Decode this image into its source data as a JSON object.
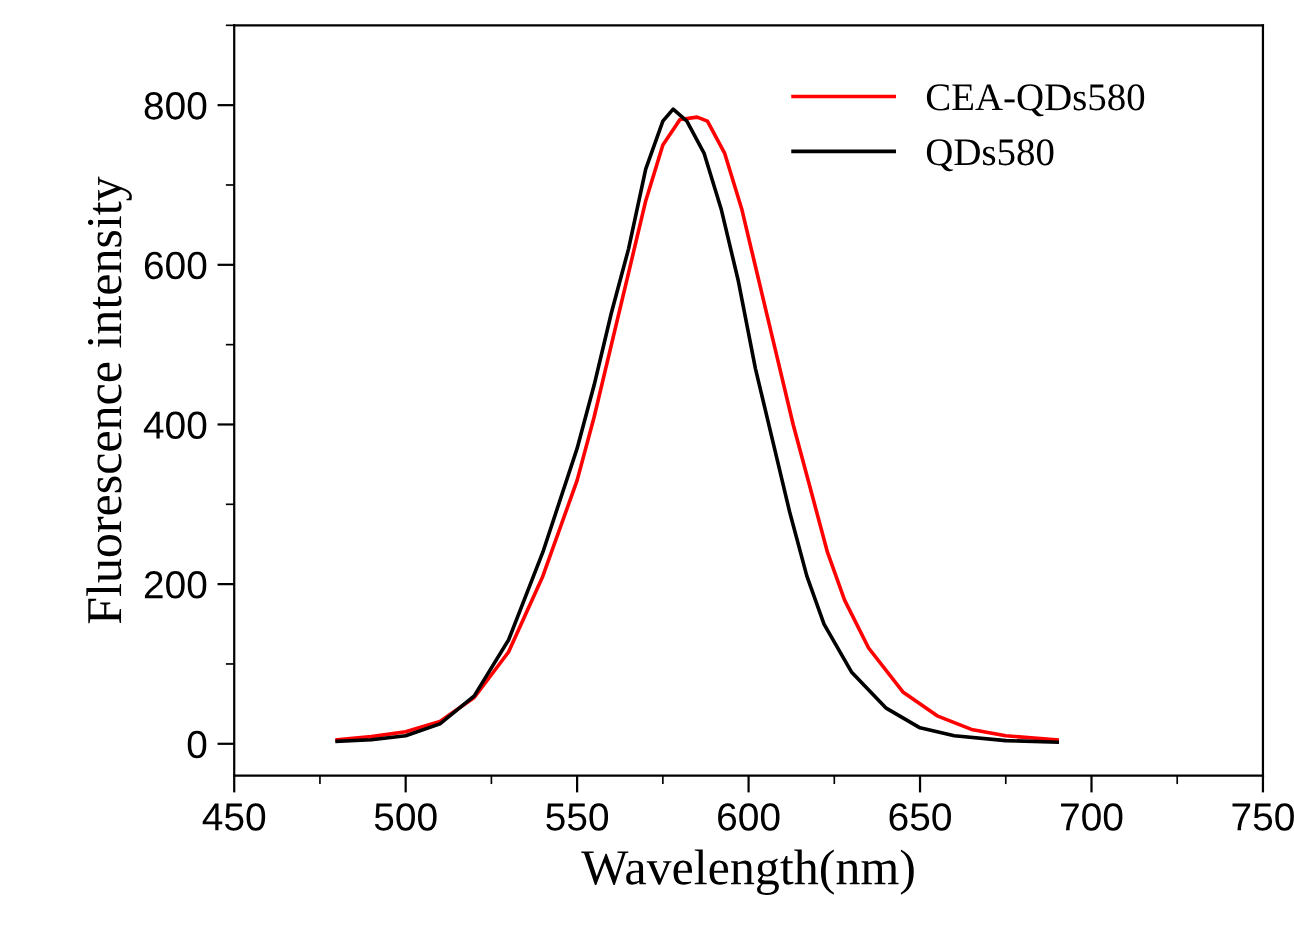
{
  "chart_data": {
    "type": "line",
    "xlabel": "Wavelength(nm)",
    "ylabel": "Fluorescence intensity",
    "xlim": [
      450,
      750
    ],
    "ylim": [
      -40,
      900
    ],
    "xticks": [
      450,
      500,
      550,
      600,
      650,
      700,
      750
    ],
    "yticks": [
      0,
      200,
      400,
      600,
      800
    ],
    "grid": false,
    "legend": "top right",
    "marker": "none",
    "line_style": "solid",
    "series": [
      {
        "name": "CEA-QDs580",
        "color": "#ff0000",
        "x": [
          480,
          490,
          500,
          510,
          520,
          530,
          540,
          550,
          555,
          560,
          565,
          570,
          575,
          580,
          585,
          588,
          593,
          598,
          603,
          608,
          613,
          618,
          623,
          628,
          635,
          645,
          655,
          665,
          675,
          690
        ],
        "values": [
          5,
          9,
          15,
          28,
          58,
          115,
          210,
          330,
          410,
          500,
          590,
          680,
          750,
          782,
          785,
          780,
          740,
          670,
          580,
          490,
          400,
          320,
          240,
          180,
          120,
          65,
          35,
          18,
          10,
          5
        ]
      },
      {
        "name": "QDs580",
        "color": "#000000",
        "x": [
          480,
          490,
          500,
          510,
          520,
          530,
          540,
          550,
          555,
          560,
          565,
          570,
          575,
          578,
          582,
          587,
          592,
          597,
          602,
          607,
          612,
          617,
          622,
          630,
          640,
          650,
          660,
          675,
          690
        ],
        "values": [
          3,
          5,
          10,
          25,
          60,
          130,
          240,
          370,
          450,
          540,
          620,
          720,
          780,
          795,
          780,
          740,
          670,
          580,
          470,
          380,
          290,
          210,
          150,
          90,
          45,
          20,
          10,
          4,
          2
        ]
      }
    ]
  }
}
